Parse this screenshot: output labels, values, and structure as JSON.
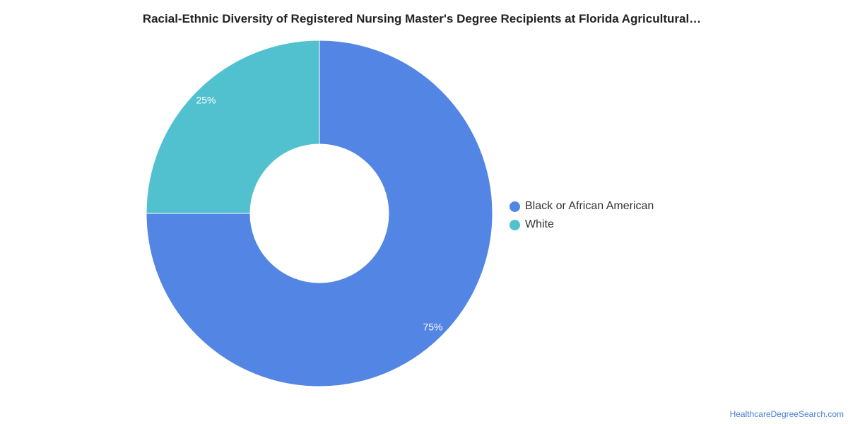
{
  "chart_data": {
    "type": "pie",
    "title": "Racial-Ethnic Diversity of Registered Nursing Master's Degree Recipients at Florida Agricultural…",
    "categories": [
      "Black or African American",
      "White"
    ],
    "values": [
      75,
      25
    ],
    "labels": [
      "75%",
      "25%"
    ],
    "colors": [
      "#5386e4",
      "#51c1d0"
    ],
    "donut": true,
    "legend_position": "right"
  },
  "source_label": "HealthcareDegreeSearch.com"
}
